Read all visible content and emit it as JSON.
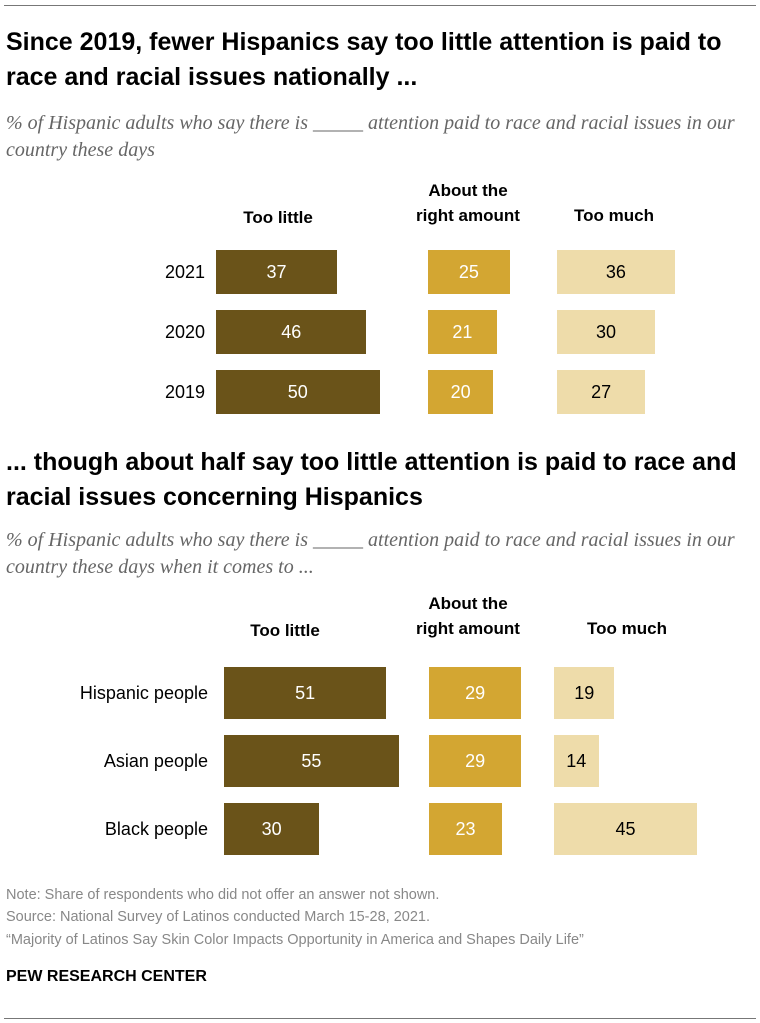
{
  "colors": {
    "too_little": "#6a5319",
    "right_amount": "#d3a632",
    "too_much": "#eedcaa"
  },
  "chart_data": [
    {
      "type": "bar",
      "title": "Since 2019, fewer Hispanics say too little attention is paid to race and racial issues nationally ...",
      "subtitle": "% of Hispanic adults who say there is _____ attention paid to race and racial issues in our country these days",
      "series_labels": [
        "Too little",
        "About the right amount",
        "Too much"
      ],
      "categories": [
        "2021",
        "2020",
        "2019"
      ],
      "series": [
        {
          "name": "Too little",
          "values": [
            37,
            46,
            50
          ]
        },
        {
          "name": "About the right amount",
          "values": [
            25,
            21,
            20
          ]
        },
        {
          "name": "Too much",
          "values": [
            36,
            30,
            27
          ]
        }
      ]
    },
    {
      "type": "bar",
      "title": "... though about half say too little attention is paid to race and racial issues concerning Hispanics",
      "subtitle": "% of Hispanic adults who say there is _____ attention paid to race and racial issues in our country these days when it comes to ...",
      "series_labels": [
        "Too little",
        "About the right amount",
        "Too much"
      ],
      "categories": [
        "Hispanic people",
        "Asian people",
        "Black people"
      ],
      "series": [
        {
          "name": "Too little",
          "values": [
            51,
            55,
            30
          ]
        },
        {
          "name": "About the right amount",
          "values": [
            29,
            29,
            23
          ]
        },
        {
          "name": "Too much",
          "values": [
            19,
            14,
            45
          ]
        }
      ]
    }
  ],
  "notes": {
    "note": "Note: Share of respondents who did not offer an answer not shown.",
    "source": "Source: National Survey of Latinos conducted March 15-28, 2021.",
    "report": "“Majority of Latinos Say Skin Color Impacts Opportunity in America and Shapes Daily Life”"
  },
  "brand": "PEW RESEARCH CENTER"
}
